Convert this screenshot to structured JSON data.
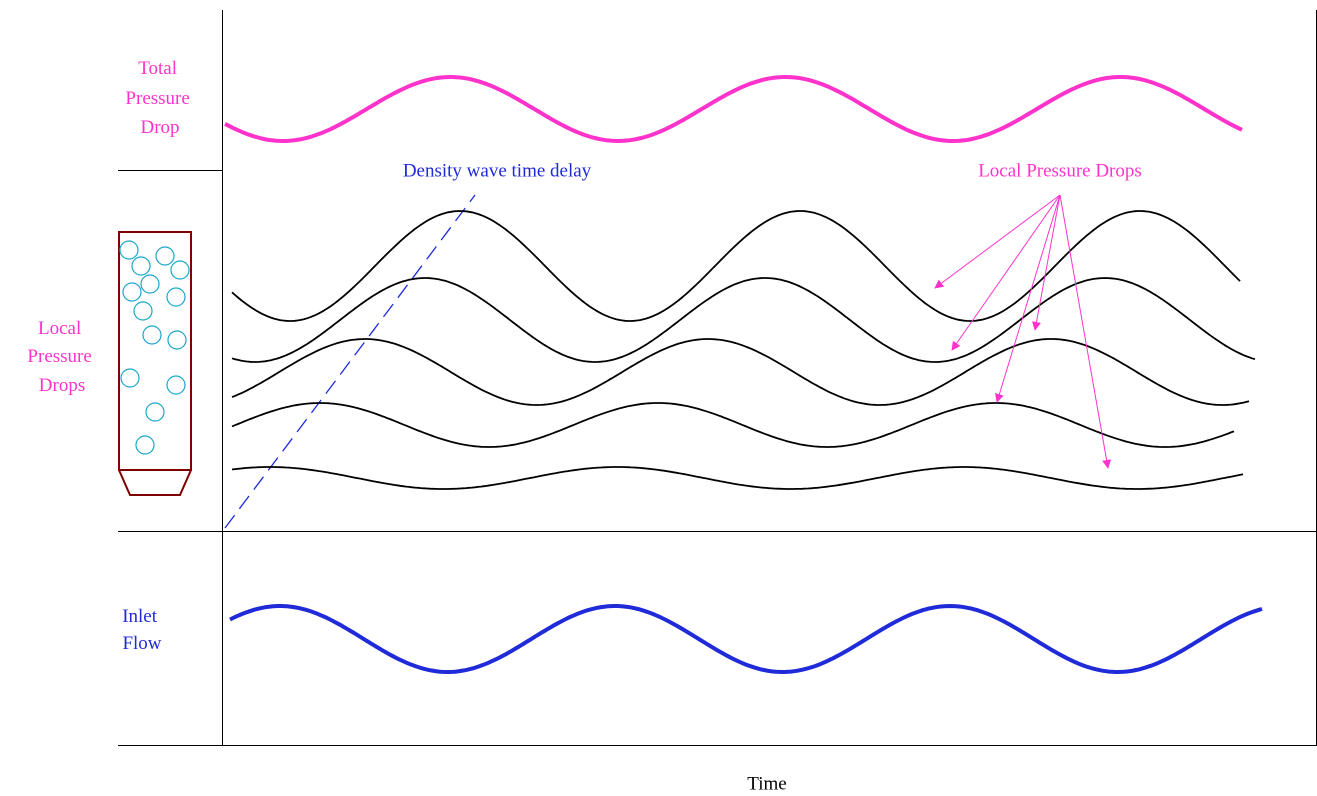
{
  "row_labels": [
    {
      "lines": [
        "Total",
        "Pressure",
        "Drop"
      ]
    },
    {
      "lines": [
        "Local",
        "Pressure",
        "Drops"
      ]
    },
    {
      "lines": [
        "Inlet",
        "Flow"
      ]
    }
  ],
  "annotations": {
    "density_wave": "Density wave time delay",
    "local_drops": "Local Pressure Drops"
  },
  "x_axis_label": "Time"
}
